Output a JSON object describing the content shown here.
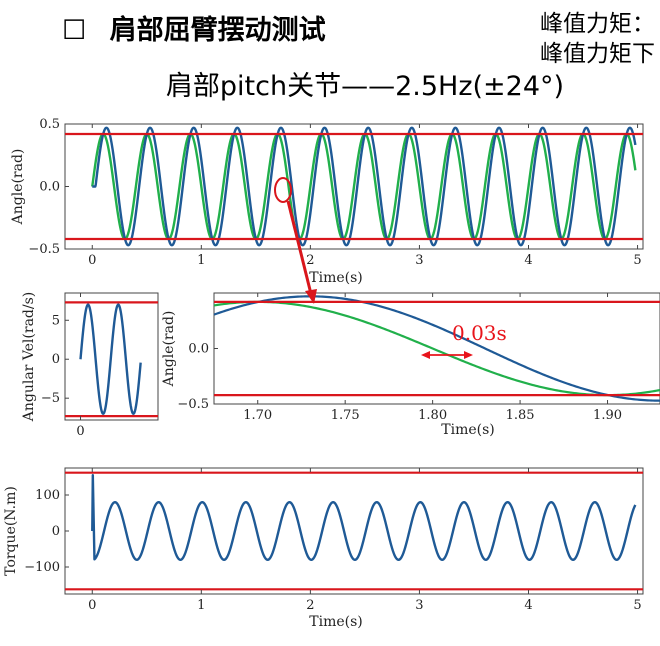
{
  "slide": {
    "title_bullet": "☐",
    "title": "肩部屈臂摆动测试",
    "subtitle": "肩部pitch关节——2.5Hz(±24°)",
    "side_notes": [
      "峰值力矩：",
      "峰值力矩下"
    ]
  },
  "annotation": {
    "text": "0.03s",
    "color": "#e8141b"
  },
  "colors": {
    "blue": "#1f5a96",
    "green": "#21b04b",
    "red": "#d9161c"
  },
  "chart_data": [
    {
      "id": "angle_main",
      "type": "line",
      "xlabel": "Time(s)",
      "ylabel": "Angle(rad)",
      "xlim": [
        -0.25,
        5.05
      ],
      "ylim": [
        -0.5,
        0.5
      ],
      "xticks": [
        0,
        1,
        2,
        3,
        4,
        5
      ],
      "yticks": [
        -0.5,
        0.0,
        0.5
      ],
      "ytick_labels": [
        "−0.5",
        "0.0",
        "0.5"
      ],
      "limits": [
        0.42,
        -0.42
      ],
      "series": [
        {
          "color": "#21b04b",
          "amplitude": 0.42,
          "freq_hz": 2.5,
          "t_start": 0,
          "t_end": 4.98,
          "delay_s": 0
        },
        {
          "color": "#1f5a96",
          "amplitude": 0.47,
          "freq_hz": 2.5,
          "t_start": 0,
          "t_end": 4.98,
          "delay_s": 0.03
        }
      ]
    },
    {
      "id": "angular_vel",
      "type": "line",
      "xlabel": "",
      "ylabel": "Angular Vel(rad/s)",
      "xticks": [
        0
      ],
      "yticks": [
        5,
        0,
        -5
      ],
      "ytick_labels": [
        "5",
        "0",
        "−5"
      ],
      "ylim": [
        -7.8,
        8.5
      ],
      "limits": [
        7.3,
        -7.3
      ],
      "series": [
        {
          "color": "#1f5a96",
          "amplitude": 7.0,
          "cycles": 2
        }
      ]
    },
    {
      "id": "angle_zoom",
      "type": "line",
      "xlabel": "Time(s)",
      "ylabel": "Angle(rad)",
      "xlim": [
        1.675,
        1.93
      ],
      "ylim": [
        -0.5,
        0.5
      ],
      "xticks": [
        1.7,
        1.75,
        1.8,
        1.85,
        1.9
      ],
      "xtick_labels": [
        "1.70",
        "1.75",
        "1.80",
        "1.85",
        "1.90"
      ],
      "yticks": [
        0.0,
        -0.5
      ],
      "ytick_labels": [
        "0.0",
        "−0.5"
      ],
      "limits": [
        0.42,
        -0.42
      ],
      "series": [
        {
          "color": "#21b04b",
          "amplitude": 0.42,
          "freq_hz": 2.5,
          "delay_s": 0
        },
        {
          "color": "#1f5a96",
          "amplitude": 0.47,
          "freq_hz": 2.5,
          "delay_s": 0.03
        }
      ]
    },
    {
      "id": "torque",
      "type": "line",
      "xlabel": "Time(s)",
      "ylabel": "Torque(N.m)",
      "xlim": [
        -0.25,
        5.05
      ],
      "ylim": [
        -175,
        175
      ],
      "xticks": [
        0,
        1,
        2,
        3,
        4,
        5
      ],
      "yticks": [
        100,
        0,
        -100
      ],
      "ytick_labels": [
        "100",
        "0",
        "−100"
      ],
      "limits": [
        162,
        -162
      ],
      "peak_start": 155,
      "series": [
        {
          "color": "#1f5a96",
          "amplitude": 80,
          "freq_hz": 2.5,
          "t_end": 4.98
        }
      ]
    }
  ]
}
